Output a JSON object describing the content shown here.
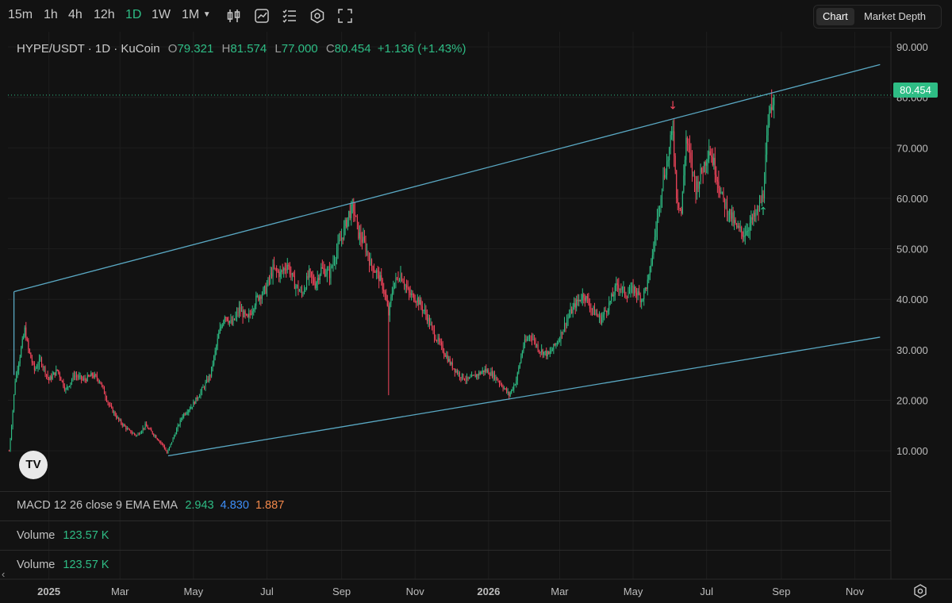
{
  "toolbar": {
    "timeframes": [
      "15m",
      "1h",
      "4h",
      "12h",
      "1D",
      "1W",
      "1M"
    ],
    "active_timeframe": "1D",
    "icons": [
      "candlestick-icon",
      "chart-style-icon",
      "indicators-icon",
      "settings-hex-icon",
      "fullscreen-icon"
    ],
    "view_tabs": [
      "Chart",
      "Market Depth"
    ],
    "active_view": "Chart"
  },
  "legend": {
    "symbol": "HYPE/USDT · 1D · KuCoin",
    "o_key": "O",
    "o": "79.321",
    "h_key": "H",
    "h": "81.574",
    "l_key": "L",
    "l": "77.000",
    "c_key": "C",
    "c": "80.454",
    "change": "+1.136 (+1.43%)"
  },
  "last_price_tag": "80.454",
  "indicators": {
    "macd_label": "MACD 12 26 close 9 EMA EMA",
    "macd_v1": "2.943",
    "macd_v2": "4.830",
    "macd_v3": "1.887",
    "volume1_label": "Volume",
    "volume1_value": "123.57 K",
    "volume2_label": "Volume",
    "volume2_value": "123.57 K"
  },
  "colors": {
    "up": "#2ebd85",
    "down": "#f6465d",
    "trendline": "#5aa9c4",
    "macd_line": "#3e8ef7",
    "signal": "#f0874a"
  },
  "chart_data": {
    "type": "candlestick",
    "title": "HYPE/USDT · 1D · KuCoin",
    "y_ticks": [
      "10.000",
      "20.000",
      "30.000",
      "40.000",
      "50.000",
      "60.000",
      "70.000",
      "80.000",
      "90.000"
    ],
    "ylim": [
      2,
      93
    ],
    "x_ticks": [
      {
        "label": "2025",
        "bold": true,
        "date": "2025-01-01"
      },
      {
        "label": "Mar",
        "date": "2025-03-01"
      },
      {
        "label": "May",
        "date": "2025-05-01"
      },
      {
        "label": "Jul",
        "date": "2025-07-01"
      },
      {
        "label": "Sep",
        "date": "2025-09-01"
      },
      {
        "label": "Nov",
        "date": "2025-11-01"
      },
      {
        "label": "2026",
        "bold": true,
        "date": "2026-01-01"
      },
      {
        "label": "Mar",
        "date": "2026-03-01"
      },
      {
        "label": "May",
        "date": "2026-05-01"
      },
      {
        "label": "Jul",
        "date": "2026-07-01"
      },
      {
        "label": "Sep",
        "date": "2026-09-01"
      },
      {
        "label": "Nov",
        "date": "2026-11-01"
      }
    ],
    "xlim": [
      "2024-11-28",
      "2026-12-01"
    ],
    "grid": true,
    "last_price": 80.454,
    "price_path": [
      [
        "2024-11-29",
        10
      ],
      [
        "2024-12-01",
        15
      ],
      [
        "2024-12-04",
        24
      ],
      [
        "2024-12-08",
        29
      ],
      [
        "2024-12-12",
        34
      ],
      [
        "2024-12-15",
        30
      ],
      [
        "2024-12-20",
        26
      ],
      [
        "2024-12-25",
        28
      ],
      [
        "2025-01-01",
        24
      ],
      [
        "2025-01-08",
        26
      ],
      [
        "2025-01-15",
        22
      ],
      [
        "2025-01-22",
        25
      ],
      [
        "2025-01-30",
        24
      ],
      [
        "2025-02-06",
        25
      ],
      [
        "2025-02-12",
        24
      ],
      [
        "2025-02-20",
        19
      ],
      [
        "2025-02-28",
        16
      ],
      [
        "2025-03-08",
        14
      ],
      [
        "2025-03-15",
        13
      ],
      [
        "2025-03-22",
        15
      ],
      [
        "2025-03-30",
        13
      ],
      [
        "2025-04-06",
        11
      ],
      [
        "2025-04-09",
        9.5
      ],
      [
        "2025-04-15",
        13
      ],
      [
        "2025-04-22",
        17
      ],
      [
        "2025-04-30",
        19
      ],
      [
        "2025-05-08",
        22
      ],
      [
        "2025-05-15",
        25
      ],
      [
        "2025-05-22",
        33
      ],
      [
        "2025-05-27",
        37
      ],
      [
        "2025-06-02",
        35
      ],
      [
        "2025-06-08",
        38
      ],
      [
        "2025-06-15",
        36
      ],
      [
        "2025-06-22",
        40
      ],
      [
        "2025-06-30",
        42
      ],
      [
        "2025-07-06",
        46
      ],
      [
        "2025-07-12",
        45
      ],
      [
        "2025-07-18",
        47
      ],
      [
        "2025-07-24",
        43
      ],
      [
        "2025-07-30",
        41
      ],
      [
        "2025-08-05",
        45
      ],
      [
        "2025-08-10",
        43
      ],
      [
        "2025-08-15",
        46
      ],
      [
        "2025-08-22",
        45
      ],
      [
        "2025-08-27",
        49
      ],
      [
        "2025-09-02",
        53
      ],
      [
        "2025-09-07",
        57
      ],
      [
        "2025-09-11",
        58
      ],
      [
        "2025-09-15",
        53
      ],
      [
        "2025-09-20",
        51
      ],
      [
        "2025-09-25",
        47
      ],
      [
        "2025-10-01",
        45
      ],
      [
        "2025-10-06",
        42
      ],
      [
        "2025-10-10",
        37
      ],
      [
        "2025-10-14",
        43
      ],
      [
        "2025-10-20",
        45
      ],
      [
        "2025-10-27",
        41
      ],
      [
        "2025-11-03",
        40
      ],
      [
        "2025-11-10",
        37
      ],
      [
        "2025-11-17",
        33
      ],
      [
        "2025-11-24",
        30
      ],
      [
        "2025-12-01",
        27
      ],
      [
        "2025-12-08",
        25
      ],
      [
        "2025-12-15",
        24
      ],
      [
        "2025-12-22",
        25
      ],
      [
        "2025-12-29",
        26
      ],
      [
        "2026-01-05",
        25
      ],
      [
        "2026-01-12",
        23
      ],
      [
        "2026-01-18",
        21
      ],
      [
        "2026-01-24",
        24
      ],
      [
        "2026-01-30",
        31
      ],
      [
        "2026-02-05",
        33
      ],
      [
        "2026-02-12",
        30
      ],
      [
        "2026-02-20",
        29
      ],
      [
        "2026-02-28",
        32
      ],
      [
        "2026-03-07",
        36
      ],
      [
        "2026-03-14",
        39
      ],
      [
        "2026-03-21",
        41
      ],
      [
        "2026-03-28",
        38
      ],
      [
        "2026-04-04",
        36
      ],
      [
        "2026-04-11",
        39
      ],
      [
        "2026-04-18",
        43
      ],
      [
        "2026-04-25",
        41
      ],
      [
        "2026-05-02",
        42
      ],
      [
        "2026-05-08",
        40
      ],
      [
        "2026-05-14",
        44
      ],
      [
        "2026-05-20",
        54
      ],
      [
        "2026-05-25",
        63
      ],
      [
        "2026-05-30",
        68
      ],
      [
        "2026-06-03",
        74
      ],
      [
        "2026-06-06",
        61
      ],
      [
        "2026-06-10",
        57
      ],
      [
        "2026-06-14",
        72
      ],
      [
        "2026-06-18",
        67
      ],
      [
        "2026-06-22",
        62
      ],
      [
        "2026-06-28",
        66
      ],
      [
        "2026-07-03",
        70
      ],
      [
        "2026-07-08",
        66
      ],
      [
        "2026-07-14",
        60
      ],
      [
        "2026-07-20",
        57
      ],
      [
        "2026-07-26",
        54
      ],
      [
        "2026-08-01",
        53
      ],
      [
        "2026-08-06",
        55
      ],
      [
        "2026-08-12",
        57
      ],
      [
        "2026-08-17",
        61
      ],
      [
        "2026-08-20",
        71
      ],
      [
        "2026-08-23",
        78
      ],
      [
        "2026-08-26",
        80.454
      ]
    ],
    "trendlines": [
      {
        "name": "upper",
        "from": [
          "2024-12-03",
          41.5
        ],
        "to": [
          "2026-11-22",
          86.5
        ]
      },
      {
        "name": "lower",
        "from": [
          "2025-04-10",
          9.0
        ],
        "to": [
          "2026-11-22",
          32.5
        ]
      },
      {
        "name": "connector",
        "from": [
          "2024-12-03",
          41.5
        ],
        "to": [
          "2024-12-03",
          25
        ]
      }
    ],
    "arrows": [
      {
        "dir": "down",
        "date": "2026-06-03",
        "price": 78.5,
        "color": "#f6465d"
      },
      {
        "dir": "up",
        "date": "2026-08-17",
        "price": 57.5,
        "color": "#2ebd85"
      }
    ]
  }
}
